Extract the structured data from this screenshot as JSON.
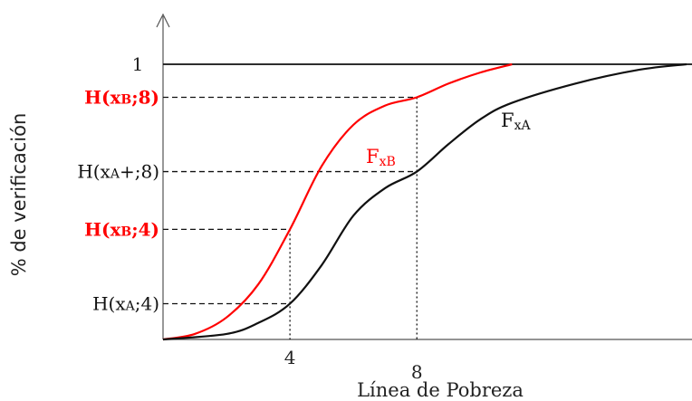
{
  "chart_data": {
    "type": "line",
    "xlabel": "Línea de Pobreza",
    "ylabel": "% de verificación",
    "x_ticks": [
      {
        "label": "4",
        "x": 4
      },
      {
        "label": "8",
        "x": 8
      }
    ],
    "y_one_label": "1",
    "y_annotations": [
      {
        "label": "H(xB;8)",
        "y": 0.88,
        "x": 8,
        "color": "#ff0000",
        "series": "B"
      },
      {
        "label": "H(xA+;8)",
        "y": 0.61,
        "x": 8,
        "color": "#111111",
        "series": "A"
      },
      {
        "label": "H(xB;4)",
        "y": 0.4,
        "x": 4,
        "color": "#ff0000",
        "series": "B"
      },
      {
        "label": "H(xA;4)",
        "y": 0.13,
        "x": 4,
        "color": "#111111",
        "series": "A"
      }
    ],
    "series": [
      {
        "name": "FxB",
        "label_main": "F",
        "label_sub": "xB",
        "color": "#ff0000",
        "points": [
          [
            0,
            0
          ],
          [
            1,
            0.02
          ],
          [
            2,
            0.08
          ],
          [
            3,
            0.2
          ],
          [
            4,
            0.4
          ],
          [
            5,
            0.63
          ],
          [
            6,
            0.78
          ],
          [
            7,
            0.85
          ],
          [
            8,
            0.88
          ],
          [
            9,
            0.93
          ],
          [
            10,
            0.97
          ],
          [
            11,
            1.0
          ]
        ]
      },
      {
        "name": "FxA",
        "label_main": "F",
        "label_sub": "xA",
        "color": "#111111",
        "points": [
          [
            0,
            0
          ],
          [
            2,
            0.02
          ],
          [
            3,
            0.06
          ],
          [
            4,
            0.13
          ],
          [
            5,
            0.27
          ],
          [
            6,
            0.45
          ],
          [
            7,
            0.55
          ],
          [
            8,
            0.61
          ],
          [
            9,
            0.71
          ],
          [
            10,
            0.8
          ],
          [
            11,
            0.86
          ],
          [
            13,
            0.93
          ],
          [
            15,
            0.98
          ],
          [
            16.5,
            1.0
          ]
        ]
      }
    ],
    "xlim": [
      0,
      16.5
    ],
    "ylim": [
      0,
      1
    ],
    "grid": false,
    "legend": "none"
  }
}
